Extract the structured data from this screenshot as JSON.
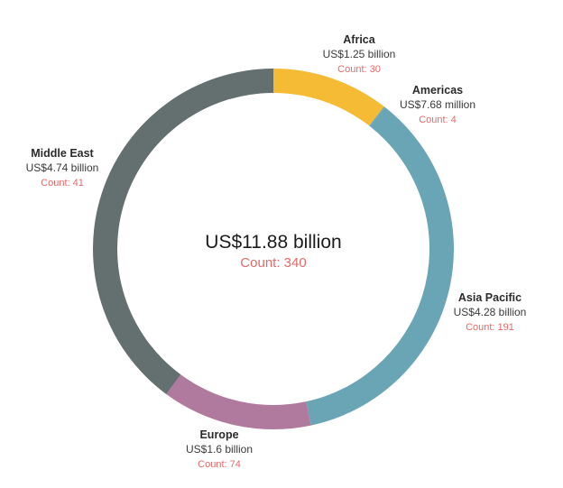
{
  "chart_data": {
    "type": "pie",
    "style": "donut",
    "center": {
      "total_label": "US$11.88 billion",
      "count_label": "Count: 340"
    },
    "slices": [
      {
        "name": "Africa",
        "value": 1.25,
        "value_label": "US$1.25 billion",
        "count_label": "Count: 30",
        "color": "#F5BB35"
      },
      {
        "name": "Americas",
        "value": 0.00768,
        "value_label": "US$7.68 million",
        "count_label": "Count: 4",
        "color": "#6AA5B6"
      },
      {
        "name": "Asia Pacific",
        "value": 4.28,
        "value_label": "US$4.28 billion",
        "count_label": "Count: 191",
        "color": "#6AA5B6"
      },
      {
        "name": "Europe",
        "value": 1.6,
        "value_label": "US$1.6 billion",
        "count_label": "Count: 74",
        "color": "#B07A9F"
      },
      {
        "name": "Middle East",
        "value": 4.74,
        "value_label": "US$4.74 billion",
        "count_label": "Count: 41",
        "color": "#646F70"
      }
    ],
    "count_color": "#E26A6A"
  }
}
